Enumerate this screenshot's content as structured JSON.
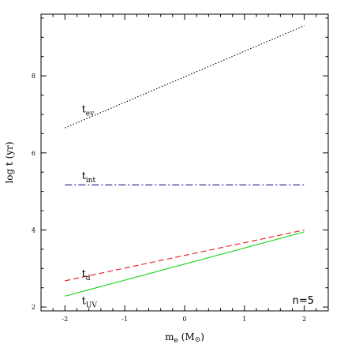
{
  "chart_data": {
    "type": "line",
    "title": "",
    "xlabel": {
      "main": "m",
      "sub": "e",
      "unit_open": " (M",
      "unit_sym": "⊙",
      "unit_close": ")"
    },
    "ylabel": "log  t  (yr)",
    "xlim": [
      -2.4,
      2.4
    ],
    "ylim": [
      1.9,
      9.6
    ],
    "x_ticks": [
      -2,
      -1,
      0,
      1,
      2
    ],
    "x_tick_labels": [
      "-2",
      "-1",
      "0",
      "1",
      "2"
    ],
    "y_ticks": [
      2,
      4,
      6,
      8
    ],
    "y_tick_labels": [
      "2",
      "4",
      "6",
      "8"
    ],
    "annotation": "n=5",
    "grid": false,
    "series": [
      {
        "name": "t_ev",
        "label_main": "t",
        "label_sub": "ev",
        "color": "#000000",
        "dash": "1.5,2.2",
        "x": [
          -2,
          2
        ],
        "y": [
          6.65,
          9.3
        ],
        "label_x": -1.72,
        "label_y": 7.05
      },
      {
        "name": "t_int",
        "label_main": "t",
        "label_sub": "int",
        "color": "#1a1a8c",
        "dash": "9,3,2,3",
        "x": [
          -2,
          2
        ],
        "y": [
          5.17,
          5.17
        ],
        "label_x": -1.72,
        "label_y": 5.32
      },
      {
        "name": "t_d",
        "label_main": "t",
        "label_sub": "d",
        "color": "#e8141e",
        "dash": "7,4",
        "x": [
          -2,
          2
        ],
        "y": [
          2.68,
          4.0
        ],
        "label_x": -1.72,
        "label_y": 2.78
      },
      {
        "name": "t_UV",
        "label_main": "t",
        "label_sub": "UV",
        "color": "#15d315",
        "dash": "",
        "x": [
          -2,
          2
        ],
        "y": [
          2.28,
          3.95
        ],
        "label_x": -1.72,
        "label_y": 2.07
      }
    ]
  }
}
